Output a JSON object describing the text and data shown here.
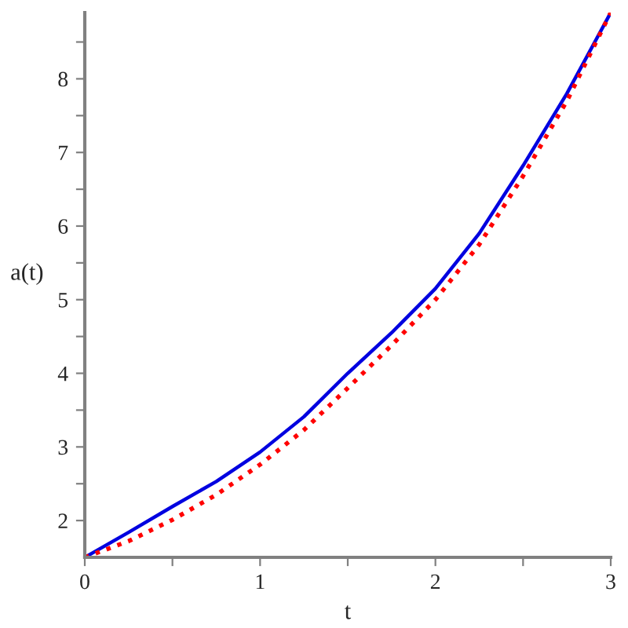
{
  "chart_data": {
    "type": "line",
    "xlabel": "t",
    "ylabel": "a(t)",
    "x": [
      0,
      0.25,
      0.5,
      0.75,
      1,
      1.25,
      1.5,
      1.75,
      2,
      2.25,
      2.5,
      2.75,
      3
    ],
    "series": [
      {
        "color": "#0000e0",
        "line_style": "solid",
        "values": [
          1.5,
          1.84,
          2.19,
          2.53,
          2.93,
          3.41,
          4.0,
          4.55,
          5.15,
          5.9,
          6.82,
          7.8,
          8.9
        ]
      },
      {
        "color": "#ff0000",
        "line_style": "dotted",
        "values": [
          1.5,
          1.72,
          2.01,
          2.35,
          2.76,
          3.23,
          3.8,
          4.38,
          5.0,
          5.75,
          6.68,
          7.7,
          8.9
        ]
      }
    ],
    "xlim": [
      0,
      3
    ],
    "ylim": [
      1.5,
      8.9
    ],
    "xticks": [
      0,
      {
        "value": 0.5,
        "label": null
      },
      1,
      {
        "value": 1.5,
        "label": null
      },
      2,
      {
        "value": 2.5,
        "label": null
      },
      3
    ],
    "yticks": [
      2,
      {
        "value": 2.5,
        "label": null
      },
      3,
      {
        "value": 3.5,
        "label": null
      },
      4,
      {
        "value": 4.5,
        "label": null
      },
      5,
      {
        "value": 5.5,
        "label": null
      },
      6,
      {
        "value": 6.5,
        "label": null
      },
      7,
      {
        "value": 7.5,
        "label": null
      },
      8,
      {
        "value": 8.5,
        "label": null
      }
    ],
    "grid": false,
    "legend": false
  }
}
